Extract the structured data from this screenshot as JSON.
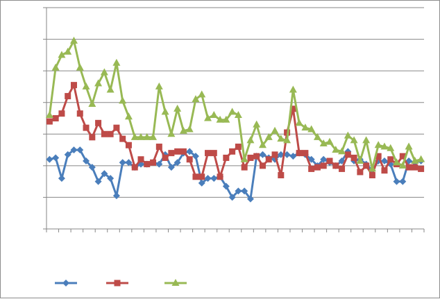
{
  "chart_data": {
    "type": "line",
    "title": "",
    "xlabel": "",
    "ylabel": "",
    "x_count": 62,
    "ylim": [
      0,
      7
    ],
    "y_grid_step": 1,
    "grid": "horizontal",
    "legend_position": "bottom-left",
    "series": [
      {
        "color": "#4a7ebb",
        "marker": "diamond",
        "values": [
          2.2,
          2.25,
          1.6,
          2.35,
          2.5,
          2.5,
          2.15,
          1.95,
          1.5,
          1.75,
          1.6,
          1.05,
          2.1,
          2.1,
          1.95,
          2.05,
          2.05,
          2.1,
          2.05,
          2.35,
          1.95,
          2.1,
          2.4,
          2.45,
          2.3,
          1.45,
          1.6,
          1.6,
          1.65,
          1.35,
          1.0,
          1.2,
          1.2,
          0.95,
          2.3,
          2.35,
          2.25,
          2.2,
          2.35,
          2.35,
          2.3,
          2.4,
          2.35,
          2.2,
          2.0,
          2.2,
          2.1,
          2.0,
          2.15,
          2.45,
          2.15,
          2.2,
          2.05,
          1.85,
          2.15,
          2.15,
          2.05,
          1.5,
          1.5,
          2.15,
          2.1,
          2.15
        ]
      },
      {
        "color": "#be4b48",
        "marker": "square",
        "values": [
          3.4,
          3.5,
          3.65,
          4.2,
          4.55,
          3.65,
          3.2,
          2.9,
          3.35,
          3.0,
          3.0,
          3.2,
          2.85,
          2.65,
          1.95,
          2.2,
          2.05,
          2.1,
          2.6,
          2.25,
          2.4,
          2.45,
          2.45,
          2.2,
          1.65,
          1.65,
          2.4,
          2.4,
          1.65,
          2.25,
          2.45,
          2.6,
          1.95,
          2.25,
          2.3,
          2.0,
          2.2,
          2.35,
          1.7,
          3.05,
          3.8,
          2.4,
          2.4,
          1.9,
          1.95,
          2.0,
          2.15,
          2.0,
          1.9,
          2.35,
          2.25,
          1.8,
          2.0,
          1.7,
          2.3,
          1.85,
          2.2,
          2.05,
          2.3,
          1.95,
          1.95,
          1.9
        ]
      },
      {
        "color": "#98b954",
        "marker": "triangle",
        "values": [
          3.6,
          5.1,
          5.5,
          5.6,
          5.95,
          5.1,
          4.5,
          3.95,
          4.6,
          4.95,
          4.4,
          5.25,
          4.05,
          3.55,
          2.9,
          2.9,
          2.9,
          2.9,
          4.5,
          3.7,
          3.0,
          3.8,
          3.1,
          3.15,
          4.1,
          4.25,
          3.5,
          3.6,
          3.45,
          3.45,
          3.7,
          3.6,
          2.2,
          2.8,
          3.3,
          2.65,
          2.9,
          3.1,
          2.85,
          2.8,
          4.4,
          3.35,
          3.2,
          3.15,
          2.9,
          2.7,
          2.75,
          2.5,
          2.45,
          2.95,
          2.8,
          2.15,
          2.8,
          1.9,
          2.65,
          2.6,
          2.55,
          2.1,
          2.0,
          2.6,
          2.15,
          2.2
        ]
      }
    ]
  }
}
